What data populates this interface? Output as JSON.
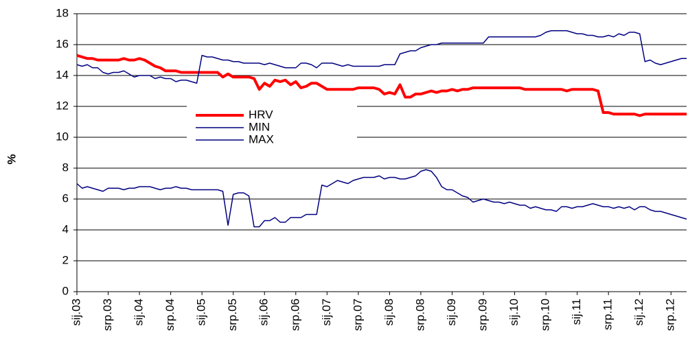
{
  "chart_data": {
    "type": "line",
    "y_label": "%",
    "categories": [
      "sij.03",
      null,
      null,
      null,
      null,
      null,
      "srp.03",
      null,
      null,
      null,
      null,
      null,
      "sij.04",
      null,
      null,
      null,
      null,
      null,
      "srp.04",
      null,
      null,
      null,
      null,
      null,
      "sij.05",
      null,
      null,
      null,
      null,
      null,
      "srp.05",
      null,
      null,
      null,
      null,
      null,
      "sij.06",
      null,
      null,
      null,
      null,
      null,
      "srp.06",
      null,
      null,
      null,
      null,
      null,
      "sij.07",
      null,
      null,
      null,
      null,
      null,
      "srp.07",
      null,
      null,
      null,
      null,
      null,
      "sij.08",
      null,
      null,
      null,
      null,
      null,
      "srp.08",
      null,
      null,
      null,
      null,
      null,
      "sij.09",
      null,
      null,
      null,
      null,
      null,
      "srp.09",
      null,
      null,
      null,
      null,
      null,
      "sij.10",
      null,
      null,
      null,
      null,
      null,
      "srp.10",
      null,
      null,
      null,
      null,
      null,
      "sij.11",
      null,
      null,
      null,
      null,
      null,
      "srp.11",
      null,
      null,
      null,
      null,
      null,
      "sij.12",
      null,
      null,
      null,
      null,
      null,
      "srp.12",
      null,
      null,
      null
    ],
    "series": [
      {
        "name": "HRV",
        "color": "#ff0000",
        "width": 4,
        "values": [
          15.3,
          15.2,
          15.1,
          15.1,
          15.0,
          15.0,
          15.0,
          15.0,
          15.0,
          15.1,
          15.0,
          15.0,
          15.1,
          15.0,
          14.8,
          14.6,
          14.5,
          14.3,
          14.3,
          14.3,
          14.2,
          14.2,
          14.2,
          14.2,
          14.2,
          14.2,
          14.2,
          14.2,
          13.9,
          14.1,
          13.9,
          13.9,
          13.9,
          13.9,
          13.8,
          13.1,
          13.5,
          13.3,
          13.7,
          13.6,
          13.7,
          13.4,
          13.6,
          13.2,
          13.3,
          13.5,
          13.5,
          13.3,
          13.1,
          13.1,
          13.1,
          13.1,
          13.1,
          13.1,
          13.2,
          13.2,
          13.2,
          13.2,
          13.1,
          12.8,
          12.9,
          12.8,
          13.4,
          12.6,
          12.6,
          12.8,
          12.8,
          12.9,
          13.0,
          12.9,
          13.0,
          13.0,
          13.1,
          13.0,
          13.1,
          13.1,
          13.2,
          13.2,
          13.2,
          13.2,
          13.2,
          13.2,
          13.2,
          13.2,
          13.2,
          13.2,
          13.1,
          13.1,
          13.1,
          13.1,
          13.1,
          13.1,
          13.1,
          13.1,
          13.0,
          13.1,
          13.1,
          13.1,
          13.1,
          13.1,
          13.0,
          11.6,
          11.6,
          11.5,
          11.5,
          11.5,
          11.5,
          11.5,
          11.4,
          11.5,
          11.5,
          11.5,
          11.5,
          11.5,
          11.5,
          11.5,
          11.5,
          11.5
        ]
      },
      {
        "name": "MIN",
        "color": "#000080",
        "width": 1.5,
        "values": [
          7.0,
          6.7,
          6.8,
          6.7,
          6.6,
          6.5,
          6.7,
          6.7,
          6.7,
          6.6,
          6.7,
          6.7,
          6.8,
          6.8,
          6.8,
          6.7,
          6.6,
          6.7,
          6.7,
          6.8,
          6.7,
          6.7,
          6.6,
          6.6,
          6.6,
          6.6,
          6.6,
          6.6,
          6.5,
          4.3,
          6.3,
          6.4,
          6.4,
          6.2,
          4.2,
          4.2,
          4.6,
          4.6,
          4.8,
          4.5,
          4.5,
          4.8,
          4.8,
          4.8,
          5.0,
          5.0,
          5.0,
          6.9,
          6.8,
          7.0,
          7.2,
          7.1,
          7.0,
          7.2,
          7.3,
          7.4,
          7.4,
          7.4,
          7.5,
          7.3,
          7.4,
          7.4,
          7.3,
          7.3,
          7.4,
          7.5,
          7.8,
          7.9,
          7.8,
          7.4,
          6.8,
          6.6,
          6.6,
          6.4,
          6.2,
          6.1,
          5.8,
          5.9,
          6.0,
          5.9,
          5.8,
          5.8,
          5.7,
          5.8,
          5.7,
          5.6,
          5.6,
          5.4,
          5.5,
          5.4,
          5.3,
          5.3,
          5.2,
          5.5,
          5.5,
          5.4,
          5.5,
          5.5,
          5.6,
          5.7,
          5.6,
          5.5,
          5.5,
          5.4,
          5.5,
          5.4,
          5.5,
          5.3,
          5.5,
          5.5,
          5.3,
          5.2,
          5.2,
          5.1,
          5.0,
          4.9,
          4.8,
          4.7
        ]
      },
      {
        "name": "MAX",
        "color": "#000080",
        "width": 1.5,
        "values": [
          14.7,
          14.6,
          14.7,
          14.5,
          14.5,
          14.2,
          14.1,
          14.2,
          14.2,
          14.3,
          14.1,
          13.9,
          14.0,
          14.0,
          14.0,
          13.8,
          13.9,
          13.8,
          13.8,
          13.6,
          13.7,
          13.7,
          13.6,
          13.5,
          15.3,
          15.2,
          15.2,
          15.1,
          15.0,
          15.0,
          14.9,
          14.9,
          14.8,
          14.8,
          14.8,
          14.8,
          14.7,
          14.8,
          14.7,
          14.6,
          14.5,
          14.5,
          14.5,
          14.8,
          14.8,
          14.7,
          14.5,
          14.8,
          14.8,
          14.8,
          14.7,
          14.6,
          14.7,
          14.6,
          14.6,
          14.6,
          14.6,
          14.6,
          14.6,
          14.7,
          14.7,
          14.7,
          15.4,
          15.5,
          15.6,
          15.6,
          15.8,
          15.9,
          16.0,
          16.0,
          16.1,
          16.1,
          16.1,
          16.1,
          16.1,
          16.1,
          16.1,
          16.1,
          16.1,
          16.5,
          16.5,
          16.5,
          16.5,
          16.5,
          16.5,
          16.5,
          16.5,
          16.5,
          16.5,
          16.6,
          16.8,
          16.9,
          16.9,
          16.9,
          16.9,
          16.8,
          16.7,
          16.7,
          16.6,
          16.6,
          16.5,
          16.5,
          16.6,
          16.5,
          16.7,
          16.6,
          16.8,
          16.8,
          16.7,
          14.9,
          15.0,
          14.8,
          14.7,
          14.8,
          14.9,
          15.0,
          15.1,
          15.1
        ]
      }
    ],
    "ylim": [
      0,
      18
    ],
    "yticks": [
      0,
      2,
      4,
      6,
      8,
      10,
      12,
      14,
      16,
      18
    ],
    "grid": true
  }
}
